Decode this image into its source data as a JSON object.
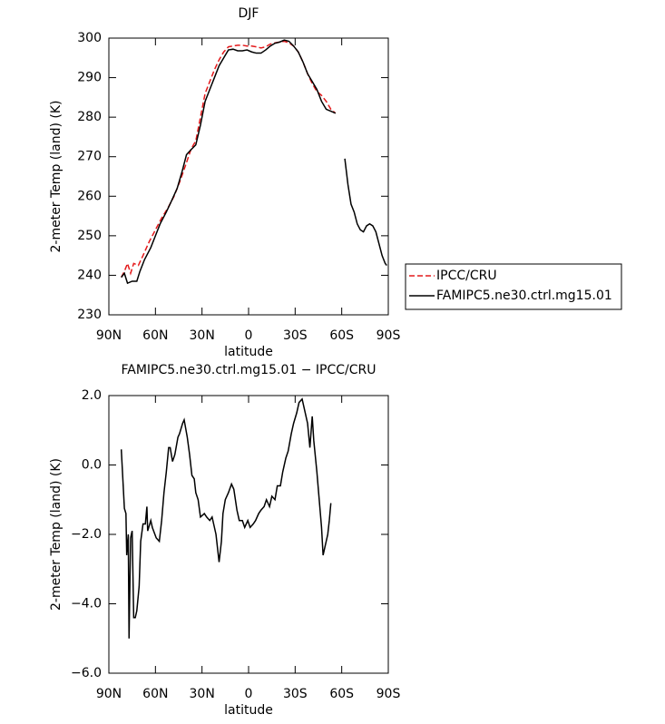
{
  "chart_data": [
    {
      "type": "line",
      "title": "DJF",
      "x_label": "latitude",
      "y_label": "2-meter Temp (land) (K)",
      "xlim": [
        90,
        -90
      ],
      "xticks": [
        {
          "value": 90,
          "label": "90N"
        },
        {
          "value": 60,
          "label": "60N"
        },
        {
          "value": 30,
          "label": "30N"
        },
        0,
        {
          "value": -30,
          "label": "30S"
        },
        {
          "value": -60,
          "label": "60S"
        },
        {
          "value": -90,
          "label": "90S"
        }
      ],
      "ylim": [
        230,
        300
      ],
      "yticks": [
        230,
        240,
        250,
        260,
        270,
        280,
        290,
        300
      ],
      "legend": "right",
      "series": [
        {
          "name": "IPCC/CRU",
          "color": "#e41a1c",
          "line_style": "dashed",
          "x": [
            82,
            80,
            78,
            76,
            74,
            71,
            68,
            64,
            60,
            56,
            52,
            48,
            44,
            40,
            37,
            34,
            31,
            28,
            25,
            22,
            19,
            16,
            13,
            10,
            7,
            4,
            1,
            -2,
            -5,
            -8,
            -11,
            -14,
            -17,
            -20,
            -23,
            -26,
            -29,
            -32,
            -35,
            -38,
            -41,
            -44,
            -47,
            -50,
            -53,
            -56
          ],
          "values": [
            239.5,
            241,
            243,
            240.5,
            243,
            242.5,
            245,
            248.5,
            251.5,
            254.5,
            257,
            260,
            264,
            268.5,
            272,
            274,
            280,
            286,
            289,
            292,
            294.5,
            296.5,
            297.8,
            298,
            298.2,
            298.2,
            298,
            298,
            297.8,
            297.5,
            297.8,
            298.5,
            298.8,
            299,
            299.2,
            298.8,
            298,
            296.5,
            294,
            291,
            288.5,
            286.5,
            285.5,
            284,
            282,
            281
          ]
        },
        {
          "name": "FAMIPC5.ne30.ctrl.mg15.01",
          "color": "#000000",
          "line_style": "solid",
          "x": [
            82,
            80,
            78,
            75,
            72,
            70,
            67,
            63,
            60,
            57,
            53,
            50,
            46,
            43,
            40,
            37,
            34,
            31,
            28,
            25,
            22,
            19,
            16,
            13,
            10,
            7,
            4,
            1,
            -2,
            -5,
            -8,
            -11,
            -14,
            -17,
            -20,
            -23,
            -26,
            -29,
            -32,
            -35,
            -38,
            -41,
            -44,
            -47,
            -50,
            -53,
            -56,
            -59,
            -62,
            -64,
            -66,
            -68,
            -70,
            -72,
            -74,
            -76,
            -78,
            -80,
            -82,
            -84,
            -86,
            -88,
            -89
          ],
          "values": [
            239.5,
            240.5,
            238,
            238.5,
            238.5,
            241,
            244,
            247,
            250,
            253,
            256,
            258.5,
            262,
            266,
            270.5,
            271.8,
            273,
            278,
            284,
            287,
            290,
            293,
            295,
            297,
            297.2,
            296.8,
            296.8,
            297,
            296.5,
            296.2,
            296.2,
            297,
            298,
            298.7,
            299,
            299.5,
            299.2,
            298,
            296.5,
            294,
            291,
            289,
            287,
            284,
            282,
            281.5,
            281,
            null,
            269.5,
            263,
            258,
            256,
            253,
            251.5,
            251,
            252.5,
            253,
            252.5,
            251,
            248,
            245,
            243,
            242.5
          ]
        }
      ]
    },
    {
      "type": "line",
      "title": "FAMIPC5.ne30.ctrl.mg15.01 − IPCC/CRU",
      "x_label": "latitude",
      "y_label": "2-meter Temp (land) (K)",
      "xlim": [
        90,
        -90
      ],
      "xticks": [
        {
          "value": 90,
          "label": "90N"
        },
        {
          "value": 60,
          "label": "60N"
        },
        {
          "value": 30,
          "label": "30N"
        },
        0,
        {
          "value": -30,
          "label": "30S"
        },
        {
          "value": -60,
          "label": "60S"
        },
        {
          "value": -90,
          "label": "90S"
        }
      ],
      "ylim": [
        -6,
        2
      ],
      "yticks": [
        {
          "value": -6,
          "label": "−6.0"
        },
        {
          "value": -4,
          "label": "−4.0"
        },
        {
          "value": -2,
          "label": "−2.0"
        },
        {
          "value": 0,
          "label": "0.0"
        },
        {
          "value": 2,
          "label": "2.0"
        }
      ],
      "color": "#000000",
      "x": [
        82,
        80,
        79,
        78.5,
        77.5,
        77,
        76,
        75,
        74,
        73,
        72,
        70.5,
        69.5,
        68,
        66.5,
        65.5,
        65,
        63,
        62,
        59.5,
        57.5,
        56,
        54.5,
        53,
        51.5,
        50.5,
        49,
        47.5,
        45.5,
        44.5,
        42.5,
        41.5,
        39.5,
        38,
        36.5,
        35,
        34,
        32.5,
        31,
        28.5,
        27,
        25,
        23.5,
        22.5,
        21,
        20,
        19,
        17.5,
        16.5,
        15,
        13,
        11,
        9.5,
        7.5,
        6,
        4,
        2.5,
        0.5,
        -1,
        -3,
        -4.5,
        -6.5,
        -8,
        -10,
        -11.5,
        -13.5,
        -15,
        -17,
        -18.5,
        -20.5,
        -22,
        -24,
        -25.5,
        -27.5,
        -29,
        -31,
        -32.5,
        -34.5,
        -36,
        -38,
        -39.5,
        -41,
        -42,
        -44,
        -45.5,
        -47,
        -48,
        -49,
        -51,
        -52,
        -53
      ],
      "values": [
        0.45,
        -1.25,
        -1.4,
        -2.6,
        -2.0,
        -5.0,
        -2.1,
        -1.9,
        -4.4,
        -4.4,
        -4.2,
        -3.5,
        -2.2,
        -1.7,
        -1.7,
        -1.2,
        -1.9,
        -1.6,
        -1.8,
        -2.1,
        -2.2,
        -1.6,
        -0.8,
        -0.2,
        0.5,
        0.5,
        0.1,
        0.3,
        0.8,
        0.9,
        1.2,
        1.3,
        0.8,
        0.3,
        -0.3,
        -0.4,
        -0.8,
        -1.0,
        -1.5,
        -1.4,
        -1.5,
        -1.6,
        -1.5,
        -1.7,
        -2.0,
        -2.4,
        -2.8,
        -2.2,
        -1.4,
        -1.0,
        -0.8,
        -0.55,
        -0.7,
        -1.3,
        -1.6,
        -1.6,
        -1.8,
        -1.6,
        -1.8,
        -1.7,
        -1.6,
        -1.4,
        -1.3,
        -1.2,
        -1.0,
        -1.2,
        -0.9,
        -1.0,
        -0.6,
        -0.6,
        -0.2,
        0.2,
        0.4,
        0.9,
        1.2,
        1.5,
        1.8,
        1.9,
        1.6,
        1.2,
        0.5,
        1.4,
        0.7,
        -0.2,
        -1.0,
        -1.8,
        -2.6,
        -2.4,
        -2.0,
        -1.6,
        -1.1
      ]
    }
  ]
}
